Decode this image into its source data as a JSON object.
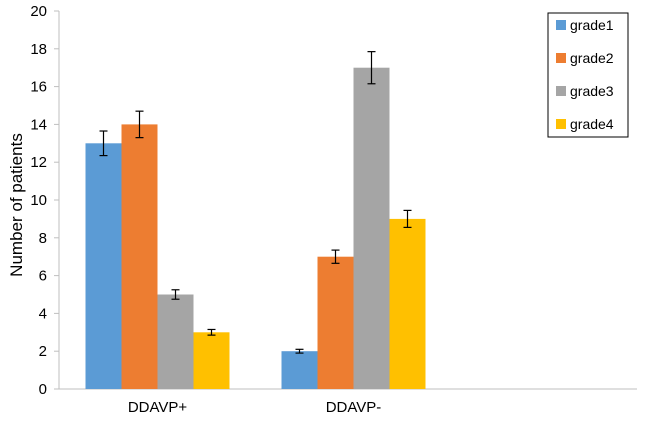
{
  "chart_data": {
    "type": "bar",
    "title": "",
    "xlabel": "",
    "ylabel": "Number of patients",
    "ylim": [
      0,
      20
    ],
    "yticks": [
      0,
      2,
      4,
      6,
      8,
      10,
      12,
      14,
      16,
      18,
      20
    ],
    "categories": [
      "DDAVP+",
      "DDAVP-"
    ],
    "series": [
      {
        "name": "grade1",
        "color": "#5b9bd5",
        "values": [
          13,
          2
        ],
        "errors": [
          0.65,
          0.1
        ]
      },
      {
        "name": "grade2",
        "color": "#ed7d31",
        "values": [
          14,
          7
        ],
        "errors": [
          0.7,
          0.35
        ]
      },
      {
        "name": "grade3",
        "color": "#a5a5a5",
        "values": [
          5,
          17
        ],
        "errors": [
          0.25,
          0.85
        ]
      },
      {
        "name": "grade4",
        "color": "#ffc000",
        "values": [
          3,
          9
        ],
        "errors": [
          0.15,
          0.45
        ]
      }
    ],
    "legend_position": "top-right",
    "grid": false
  }
}
